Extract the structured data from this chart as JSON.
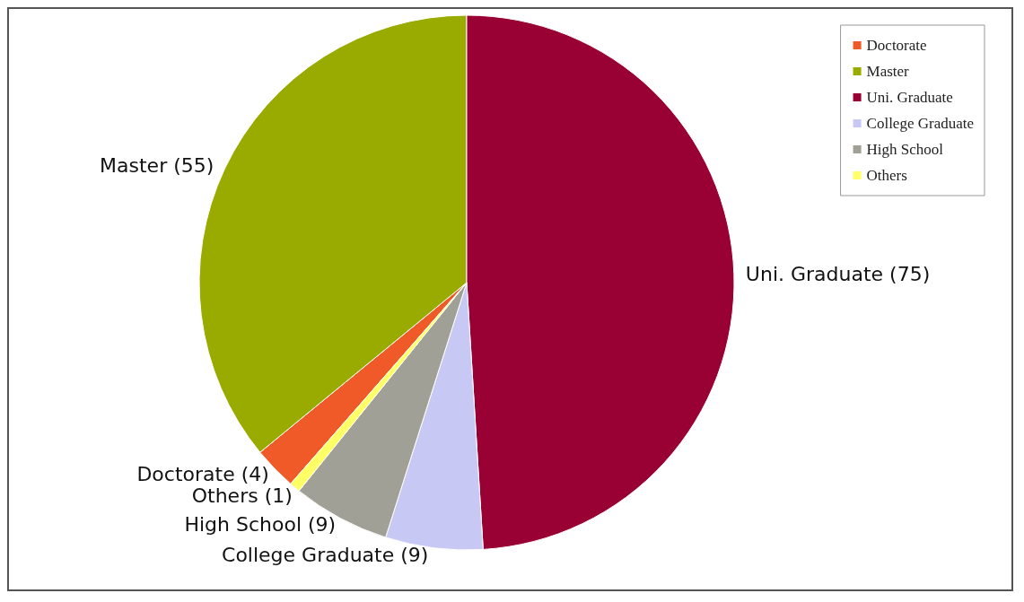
{
  "chart_data": {
    "type": "pie",
    "categories": [
      "Doctorate",
      "Master",
      "Uni. Graduate",
      "College Graduate",
      "High School",
      "Others"
    ],
    "values": [
      4,
      55,
      75,
      9,
      9,
      1
    ],
    "colors": [
      "#f05a28",
      "#9aab00",
      "#990033",
      "#c8c8f5",
      "#a0a096",
      "#ffff66"
    ],
    "value_labels": [
      "(4)",
      "(55)",
      "(75)",
      "(9)",
      "(9)",
      "(1)"
    ],
    "legend": "top right"
  }
}
